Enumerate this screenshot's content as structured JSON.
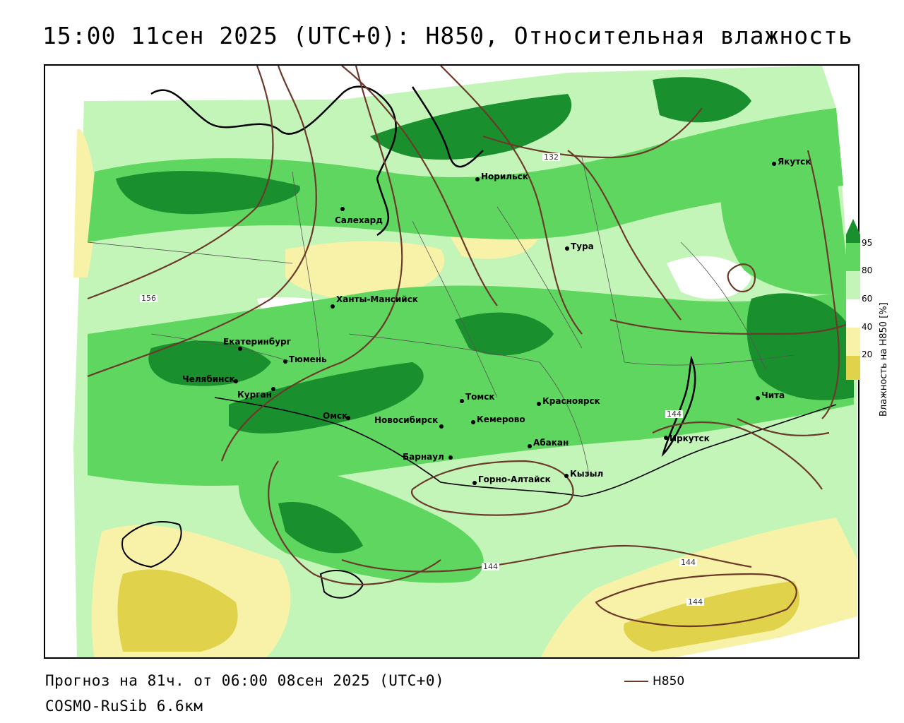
{
  "title": "15:00 11сен 2025 (UTC+0): H850, Относительная влажность",
  "forecast_line": "Прогноз на 81ч. от 06:00 08сен 2025 (UTC+0)",
  "model_line": "COSMO-RuSib 6.6км",
  "isoline_legend": "H850",
  "legend": {
    "title": "Влажность на H850 [%]",
    "ticks": [
      "95",
      "80",
      "60",
      "40",
      "20"
    ],
    "colors": {
      "c95": "#1a8f2e",
      "c80": "#5fd65f",
      "c60": "#c3f5b8",
      "c40": "#ffffff",
      "c20": "#f7f2a8",
      "c0": "#e0d24a"
    }
  },
  "colors": {
    "isoline": "#6b3a2a",
    "dark_green": "#1a8f2e",
    "mid_green": "#5fd65f",
    "light_green": "#c3f5b8",
    "yellow": "#f7f2a8",
    "dark_yellow": "#e0d24a"
  },
  "cities": [
    {
      "name": "Якутск"
    },
    {
      "name": "Норильск"
    },
    {
      "name": "Салехард"
    },
    {
      "name": "Тура"
    },
    {
      "name": "Ханты-Мансийск"
    },
    {
      "name": "Екатеринбург"
    },
    {
      "name": "Тюмень"
    },
    {
      "name": "Челябинск"
    },
    {
      "name": "Курган"
    },
    {
      "name": "Омск"
    },
    {
      "name": "Новосибирск"
    },
    {
      "name": "Томск"
    },
    {
      "name": "Кемерово"
    },
    {
      "name": "Красноярск"
    },
    {
      "name": "Абакан"
    },
    {
      "name": "Барнаул"
    },
    {
      "name": "Горно-Алтайск"
    },
    {
      "name": "Кызыл"
    },
    {
      "name": "Иркутск"
    },
    {
      "name": "Чита"
    }
  ],
  "contour_labels": [
    "132",
    "156",
    "144",
    "144",
    "144",
    "144"
  ]
}
